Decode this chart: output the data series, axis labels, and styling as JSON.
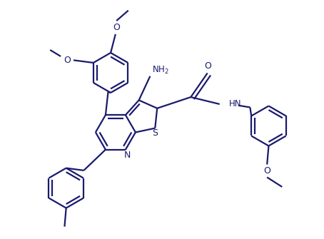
{
  "bg_color": "#ffffff",
  "line_color": "#1a1a6e",
  "lw": 1.6,
  "figsize": [
    4.54,
    3.35
  ],
  "dpi": 100,
  "xlim": [
    0,
    10
  ],
  "ylim": [
    0,
    7.4
  ]
}
